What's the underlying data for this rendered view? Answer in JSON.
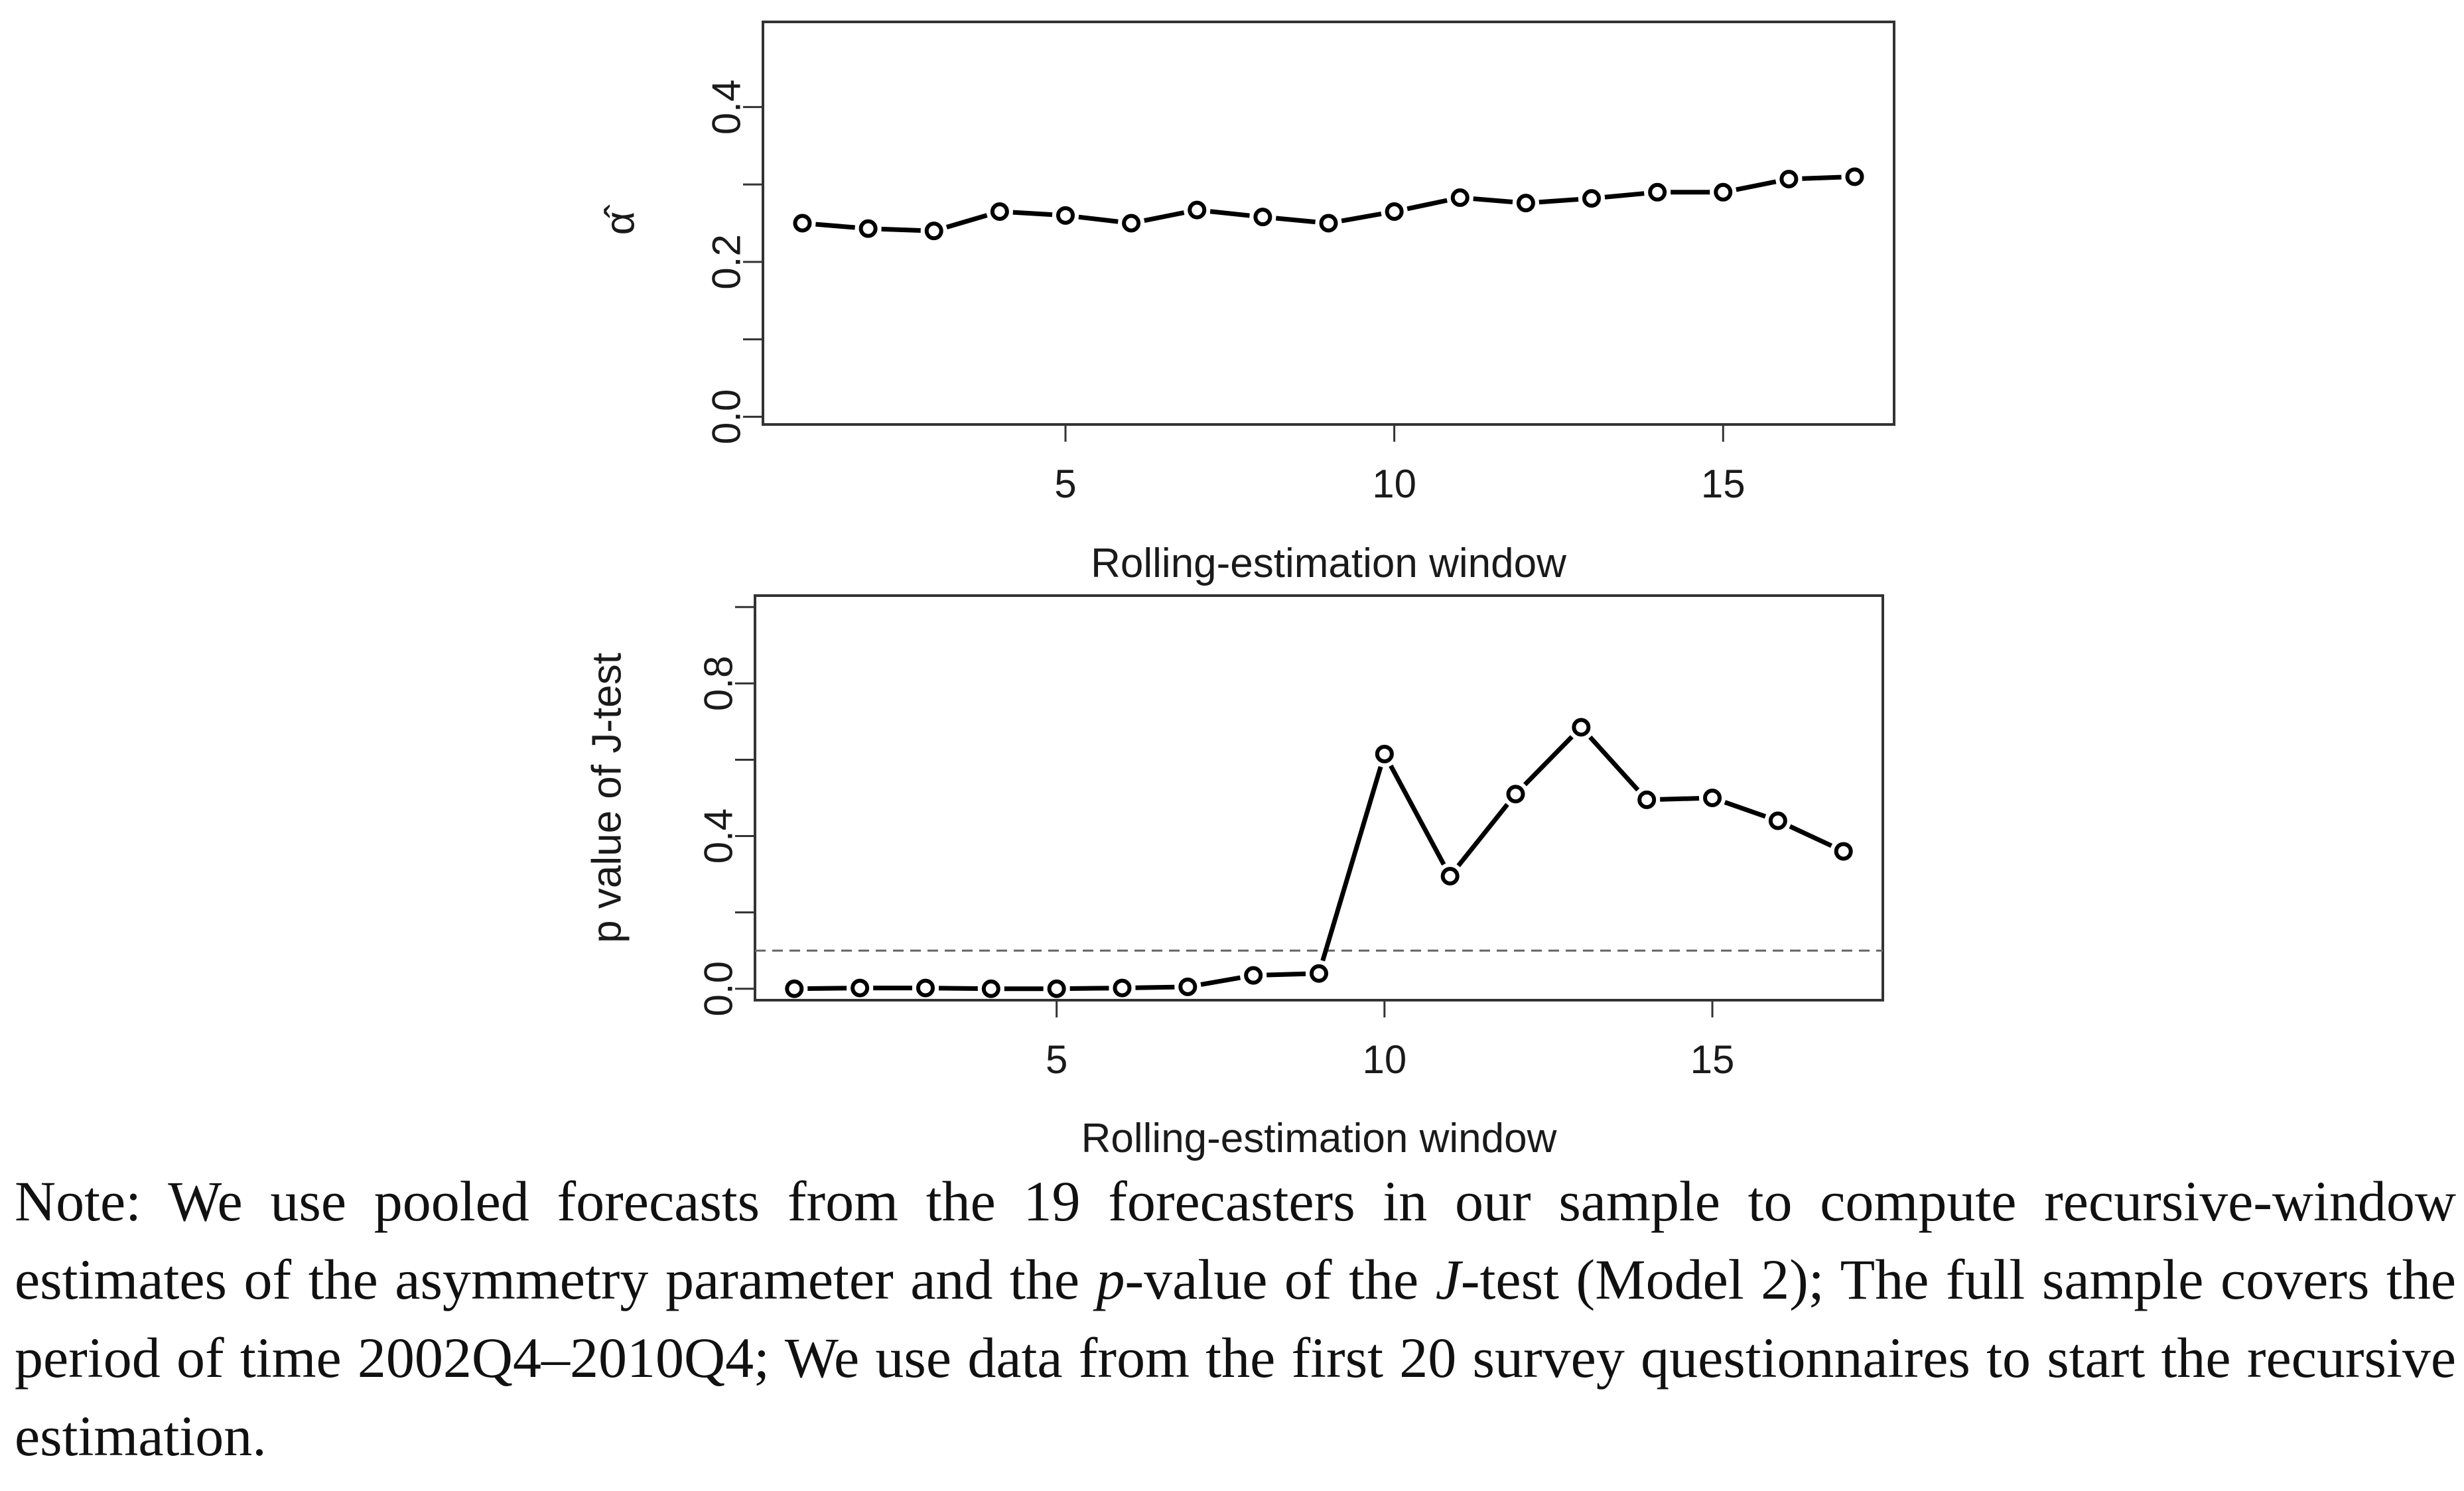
{
  "chart_data": [
    {
      "type": "line",
      "title": "",
      "xlabel": "Rolling-estimation window",
      "ylabel": "α̂",
      "x": [
        1,
        2,
        3,
        4,
        5,
        6,
        7,
        8,
        9,
        10,
        11,
        12,
        13,
        14,
        15,
        16,
        17
      ],
      "values": [
        0.25,
        0.243,
        0.24,
        0.265,
        0.26,
        0.25,
        0.267,
        0.258,
        0.25,
        0.265,
        0.283,
        0.276,
        0.282,
        0.29,
        0.29,
        0.307,
        0.31
      ],
      "xlim": [
        0.4,
        17.6
      ],
      "ylim": [
        -0.01,
        0.51
      ],
      "xticks": [
        5,
        10,
        15
      ],
      "xtick_labels": [
        "5",
        "10",
        "15"
      ],
      "yticks": [
        0.0,
        0.2,
        0.4
      ],
      "ytick_labels": [
        "0.0",
        "0.2",
        "0.4"
      ],
      "extra_yticks": [
        0.1,
        0.3
      ],
      "reference_line": null,
      "grid": false
    },
    {
      "type": "line",
      "title": "",
      "xlabel": "Rolling-estimation window",
      "ylabel": "p value of J-test",
      "x": [
        1,
        2,
        3,
        4,
        5,
        6,
        7,
        8,
        9,
        10,
        11,
        12,
        13,
        14,
        15,
        16,
        17
      ],
      "values": [
        0.0,
        0.002,
        0.002,
        0.0,
        0.0,
        0.002,
        0.005,
        0.035,
        0.04,
        0.615,
        0.295,
        0.51,
        0.685,
        0.495,
        0.5,
        0.44,
        0.36
      ],
      "xlim": [
        0.4,
        17.6
      ],
      "ylim": [
        -0.03,
        1.03
      ],
      "xticks": [
        5,
        10,
        15
      ],
      "xtick_labels": [
        "5",
        "10",
        "15"
      ],
      "yticks": [
        0.0,
        0.4,
        0.8
      ],
      "ytick_labels": [
        "0.0",
        "0.4",
        "0.8"
      ],
      "extra_yticks": [
        0.2,
        0.6,
        1.0
      ],
      "reference_line": 0.1,
      "grid": false
    }
  ],
  "note": {
    "prefix": "Note: We use pooled forecasts from the 19 forecasters in our sample to compute recursive-window estimates of the asymmetry parameter and the ",
    "p_italic": "p",
    "middle": "-value of the ",
    "j_italic": "J",
    "suffix": "-test (Model 2); The full sample covers the period of time 2002Q4–2010Q4; We use data from the first 20 survey questionnaires to start the recursive estimation."
  }
}
